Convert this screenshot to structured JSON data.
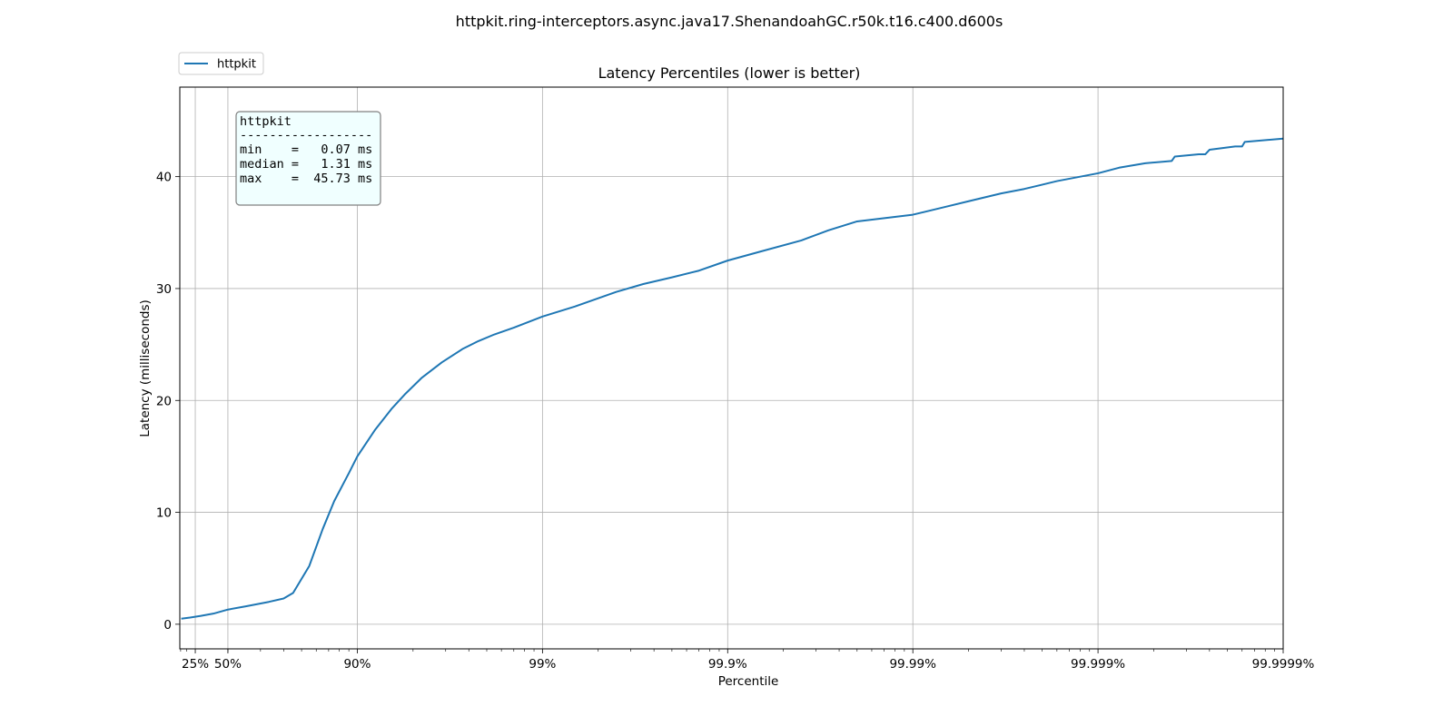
{
  "figure_title": "httpkit.ring-interceptors.async.java17.ShenandoahGC.r50k.t16.c400.d600s",
  "legend": {
    "label": "httpkit"
  },
  "stats_box": {
    "title": "httpkit",
    "divider": "------------------",
    "lines": [
      "min    =   0.07 ms",
      "median =   1.31 ms",
      "max    =  45.73 ms"
    ]
  },
  "colors": {
    "series": "#1f77b4",
    "grid": "#b0b0b0",
    "stats_bg": "#f0ffff",
    "stats_border": "#808080"
  },
  "chart_data": {
    "type": "line",
    "title": "Latency Percentiles (lower is better)",
    "xlabel": "Percentile",
    "ylabel": "Latency (milliseconds)",
    "x_scale": "log of 1/(1 - percentile)",
    "xlim": [
      1.1,
      1000000
    ],
    "ylim": [
      -2.2,
      48
    ],
    "grid": true,
    "legend_position": "top-left, outside axes",
    "x_ticks": [
      {
        "value": 1.3333333,
        "label": "25%"
      },
      {
        "value": 2,
        "label": "50%"
      },
      {
        "value": 10,
        "label": "90%"
      },
      {
        "value": 100,
        "label": "99%"
      },
      {
        "value": 1000,
        "label": "99.9%"
      },
      {
        "value": 10000,
        "label": "99.99%"
      },
      {
        "value": 100000,
        "label": "99.999%"
      },
      {
        "value": 1000000,
        "label": "99.9999%"
      }
    ],
    "y_ticks": [
      {
        "value": 0,
        "label": "0"
      },
      {
        "value": 10,
        "label": "10"
      },
      {
        "value": 20,
        "label": "20"
      },
      {
        "value": 30,
        "label": "30"
      },
      {
        "value": 40,
        "label": "40"
      }
    ],
    "series": [
      {
        "name": "httpkit",
        "points": [
          [
            1.12,
            0.5
          ],
          [
            1.25,
            0.6
          ],
          [
            1.43,
            0.75
          ],
          [
            1.67,
            0.95
          ],
          [
            2.0,
            1.31
          ],
          [
            2.5,
            1.6
          ],
          [
            3.33,
            2.0
          ],
          [
            4.0,
            2.3
          ],
          [
            4.5,
            2.8
          ],
          [
            5.5,
            5.2
          ],
          [
            6.5,
            8.5
          ],
          [
            7.5,
            11.0
          ],
          [
            9.0,
            13.5
          ],
          [
            10.0,
            15.0
          ],
          [
            12.5,
            17.4
          ],
          [
            15.4,
            19.3
          ],
          [
            18.2,
            20.6
          ],
          [
            22.2,
            22.0
          ],
          [
            28.6,
            23.4
          ],
          [
            37.0,
            24.6
          ],
          [
            45.0,
            25.3
          ],
          [
            55.0,
            25.9
          ],
          [
            70.0,
            26.5
          ],
          [
            100.0,
            27.5
          ],
          [
            150.0,
            28.4
          ],
          [
            250.0,
            29.7
          ],
          [
            350.0,
            30.4
          ],
          [
            500.0,
            31.0
          ],
          [
            700.0,
            31.6
          ],
          [
            1000.0,
            32.5
          ],
          [
            1500.0,
            33.3
          ],
          [
            2500.0,
            34.3
          ],
          [
            3500.0,
            35.2
          ],
          [
            5000.0,
            36.0
          ],
          [
            10000.0,
            36.6
          ],
          [
            15000.0,
            37.3
          ],
          [
            20000.0,
            37.8
          ],
          [
            30000.0,
            38.5
          ],
          [
            40000.0,
            38.9
          ],
          [
            60000.0,
            39.6
          ],
          [
            100000.0,
            40.3
          ],
          [
            130000.0,
            40.8
          ],
          [
            180000.0,
            41.2
          ],
          [
            250000.0,
            41.4
          ],
          [
            260000.0,
            41.8
          ],
          [
            350000.0,
            42.0
          ],
          [
            380000.0,
            42.0
          ],
          [
            400000.0,
            42.4
          ],
          [
            550000.0,
            42.7
          ],
          [
            600000.0,
            42.7
          ],
          [
            620000.0,
            43.1
          ],
          [
            1000000.0,
            43.4
          ]
        ]
      }
    ],
    "annotation": "httpkit / min = 0.07 ms / median = 1.31 ms / max = 45.73 ms"
  }
}
